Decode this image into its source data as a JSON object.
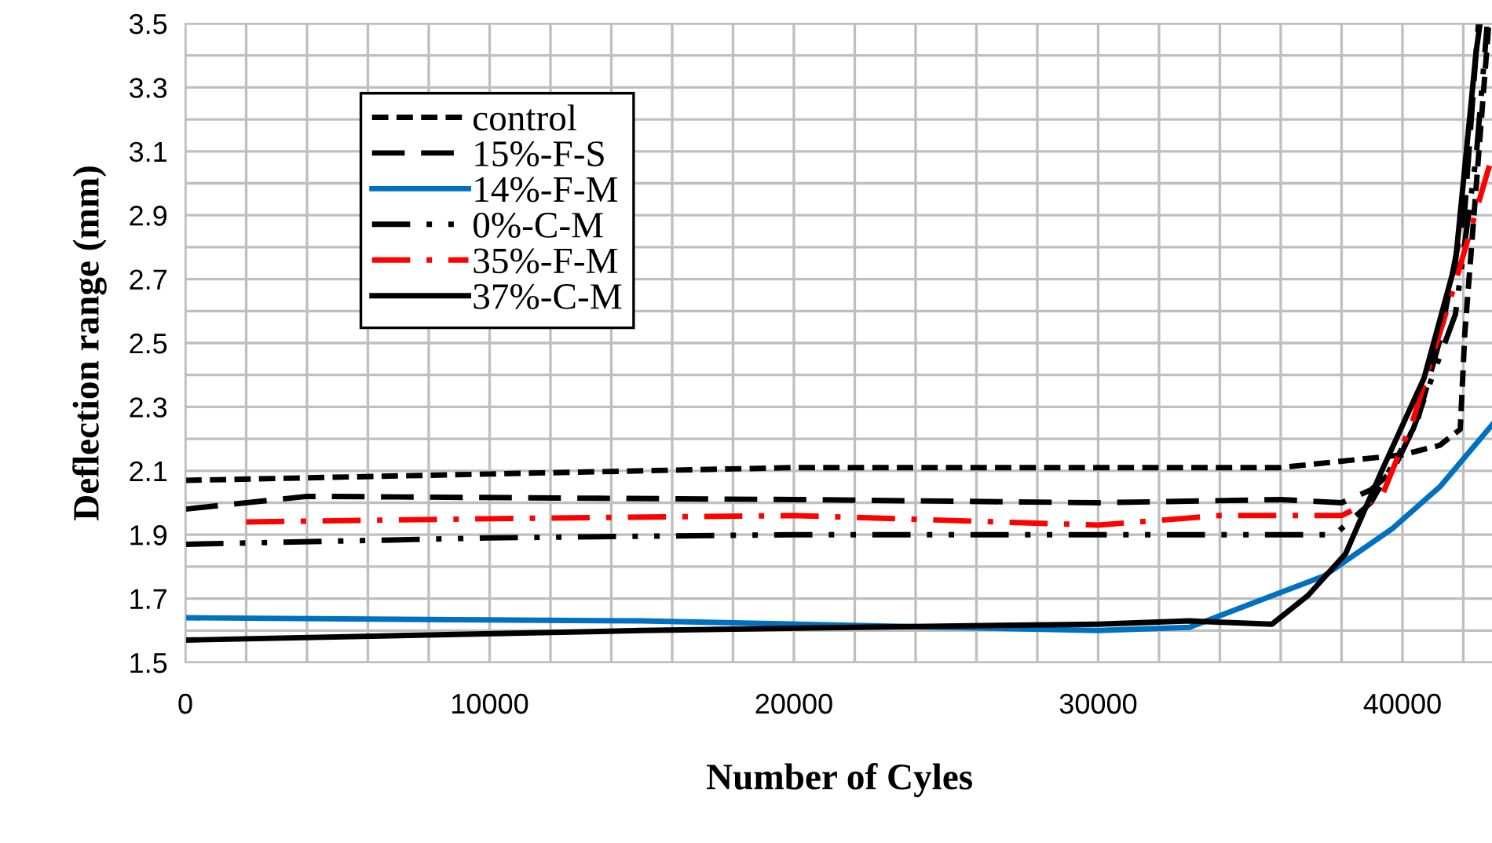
{
  "chart_data": {
    "type": "line",
    "xlabel": "Number of Cyles",
    "ylabel": "Deflection range (mm)",
    "xlim": [
      0,
      43000
    ],
    "xticks": [
      0,
      10000,
      20000,
      30000,
      40000
    ],
    "ylim": [
      1.5,
      3.5
    ],
    "yticks": [
      1.5,
      1.7,
      1.9,
      2.1,
      2.3,
      2.5,
      2.7,
      2.9,
      3.1,
      3.3,
      3.5
    ],
    "grid": true,
    "legend": "top left",
    "marker": "none",
    "series": [
      {
        "name": "control",
        "color": "#000000",
        "line_style": "shortdash",
        "x": [
          0,
          10000,
          20000,
          30000,
          36000,
          40000,
          41230,
          41900,
          42050,
          42830
        ],
        "values": [
          2.07,
          2.09,
          2.11,
          2.11,
          2.11,
          2.15,
          2.18,
          2.23,
          2.53,
          3.49
        ]
      },
      {
        "name": "15%-F-S",
        "color": "#000000",
        "line_style": "dashed",
        "x": [
          0,
          4000,
          20000,
          30000,
          36000,
          38000,
          38960,
          39680,
          40500,
          41230,
          42050,
          42420,
          42500
        ],
        "values": [
          1.98,
          2.02,
          2.01,
          2.0,
          2.01,
          2.0,
          2.04,
          2.1,
          2.26,
          2.51,
          2.92,
          3.41,
          3.5
        ]
      },
      {
        "name": "14%-F-M",
        "color": "#0070c0",
        "line_style": "solid",
        "x": [
          0,
          15000,
          25000,
          30000,
          33000,
          35190,
          37410,
          39680,
          41230,
          43000
        ],
        "values": [
          1.64,
          1.63,
          1.61,
          1.6,
          1.61,
          1.69,
          1.77,
          1.92,
          2.05,
          2.25
        ]
      },
      {
        "name": "0%-C-M",
        "color": "#000000",
        "line_style": "dashdotdot",
        "x": [
          0,
          10000,
          20000,
          30000,
          35000,
          37770,
          38960,
          40350,
          41740,
          42420,
          42780
        ],
        "values": [
          1.87,
          1.89,
          1.9,
          1.9,
          1.9,
          1.9,
          2.0,
          2.23,
          2.59,
          3.08,
          3.49
        ]
      },
      {
        "name": "35%-F-M",
        "color": "#ff0000",
        "line_style": "dashdot",
        "x": [
          2000,
          10000,
          20000,
          30000,
          34000,
          38000,
          39320,
          40350,
          41740,
          42780,
          43000
        ],
        "values": [
          1.94,
          1.95,
          1.96,
          1.93,
          1.96,
          1.96,
          2.02,
          2.26,
          2.69,
          3.03,
          3.1
        ]
      },
      {
        "name": "37%-C-M",
        "color": "#000000",
        "line_style": "solid",
        "x": [
          0,
          15000,
          22000,
          30000,
          33000,
          35710,
          36900,
          38130,
          39320,
          40710,
          41740,
          42420,
          42550
        ],
        "values": [
          1.57,
          1.6,
          1.61,
          1.62,
          1.63,
          1.62,
          1.71,
          1.84,
          2.1,
          2.39,
          2.75,
          3.41,
          3.5
        ]
      }
    ]
  }
}
